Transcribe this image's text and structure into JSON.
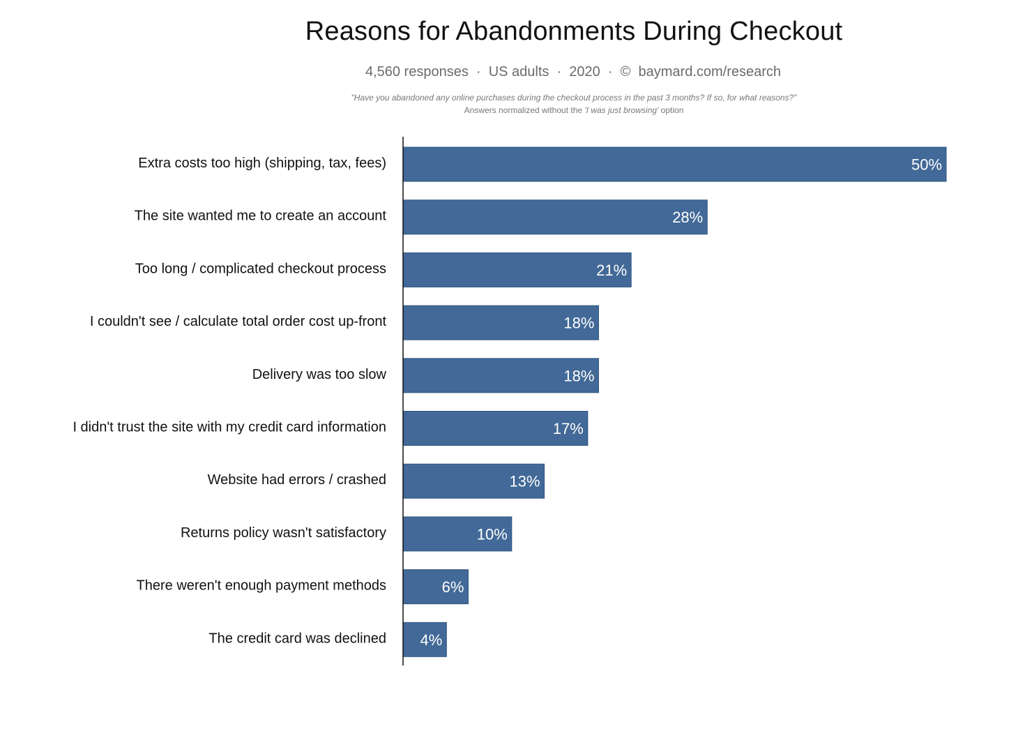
{
  "header": {
    "title": "Reasons for Abandonments During Checkout",
    "subtitle": "4,560 responses  ·  US adults  ·  2020  ·  ©  baymard.com/research",
    "question": "\"Have you abandoned any online purchases during the checkout process in the past 3 months? If so, for what reasons?\"",
    "note_prefix": "Answers normalized without the ",
    "note_option": "'I was just browsing'",
    "note_suffix": " option"
  },
  "colors": {
    "bar": "#426997",
    "bar_edge": "#2f5683",
    "axis": "#111111"
  },
  "chart_data": {
    "type": "bar",
    "orientation": "horizontal",
    "title": "Reasons for Abandonments During Checkout",
    "xlabel": "",
    "ylabel": "",
    "xlim": [
      0,
      50
    ],
    "unit": "%",
    "grid": false,
    "legend": "none",
    "categories": [
      "Extra costs too high (shipping, tax, fees)",
      "The site wanted me to create an account",
      "Too long / complicated checkout process",
      "I couldn't see / calculate total order cost up-front",
      "Delivery was too slow",
      "I didn't trust the site with my credit card information",
      "Website had errors / crashed",
      "Returns policy wasn't satisfactory",
      "There weren't enough payment methods",
      "The credit card was declined"
    ],
    "values": [
      50,
      28,
      21,
      18,
      18,
      17,
      13,
      10,
      6,
      4
    ],
    "value_labels": [
      "50%",
      "28%",
      "21%",
      "18%",
      "18%",
      "17%",
      "13%",
      "10%",
      "6%",
      "4%"
    ]
  }
}
